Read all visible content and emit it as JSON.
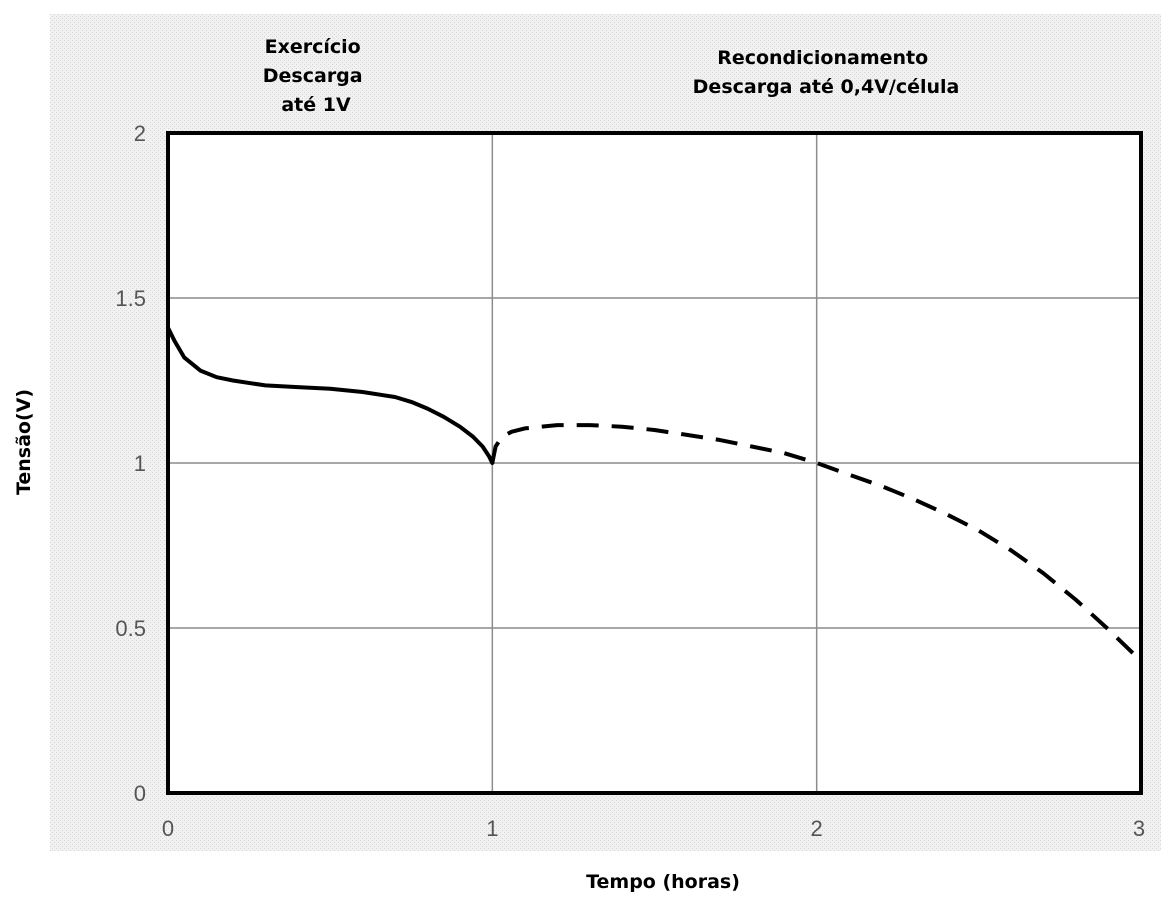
{
  "chart_data": {
    "type": "line",
    "xlabel": "Tempo (horas)",
    "ylabel": "Tensão(V)",
    "xlim": [
      0,
      3
    ],
    "ylim": [
      0,
      2
    ],
    "x_ticks": [
      "0",
      "1",
      "2",
      "3"
    ],
    "y_ticks": [
      "0",
      "0.5",
      "1",
      "1.5",
      "2"
    ],
    "grid": true,
    "annotations": [
      {
        "lines": [
          "Exercício",
          "Descarga",
          "até 1V"
        ]
      },
      {
        "lines": [
          "Recondicionamento",
          "Descarga até 0,4V/célula"
        ]
      }
    ],
    "series": [
      {
        "style": "solid",
        "x": [
          0,
          0.02,
          0.05,
          0.1,
          0.15,
          0.2,
          0.3,
          0.4,
          0.5,
          0.6,
          0.7,
          0.75,
          0.8,
          0.85,
          0.9,
          0.94,
          0.97,
          0.99,
          1.0
        ],
        "y": [
          1.41,
          1.37,
          1.32,
          1.28,
          1.26,
          1.25,
          1.235,
          1.23,
          1.225,
          1.215,
          1.2,
          1.185,
          1.165,
          1.14,
          1.11,
          1.08,
          1.05,
          1.02,
          1.0
        ]
      },
      {
        "style": "dashed",
        "x": [
          1.0,
          1.01,
          1.03,
          1.06,
          1.1,
          1.2,
          1.3,
          1.4,
          1.5,
          1.6,
          1.7,
          1.8,
          1.9,
          2.0,
          2.1,
          2.2,
          2.3,
          2.4,
          2.5,
          2.6,
          2.7,
          2.8,
          2.9,
          3.0
        ],
        "y": [
          1.0,
          1.05,
          1.08,
          1.095,
          1.105,
          1.115,
          1.115,
          1.11,
          1.1,
          1.085,
          1.07,
          1.05,
          1.03,
          1.0,
          0.965,
          0.93,
          0.89,
          0.845,
          0.795,
          0.735,
          0.665,
          0.585,
          0.495,
          0.4
        ]
      }
    ],
    "colors": {
      "line": "#000000",
      "grid": "#8c8c8c",
      "plot_background": "#ffffff",
      "panel_background": "#ececec"
    }
  }
}
